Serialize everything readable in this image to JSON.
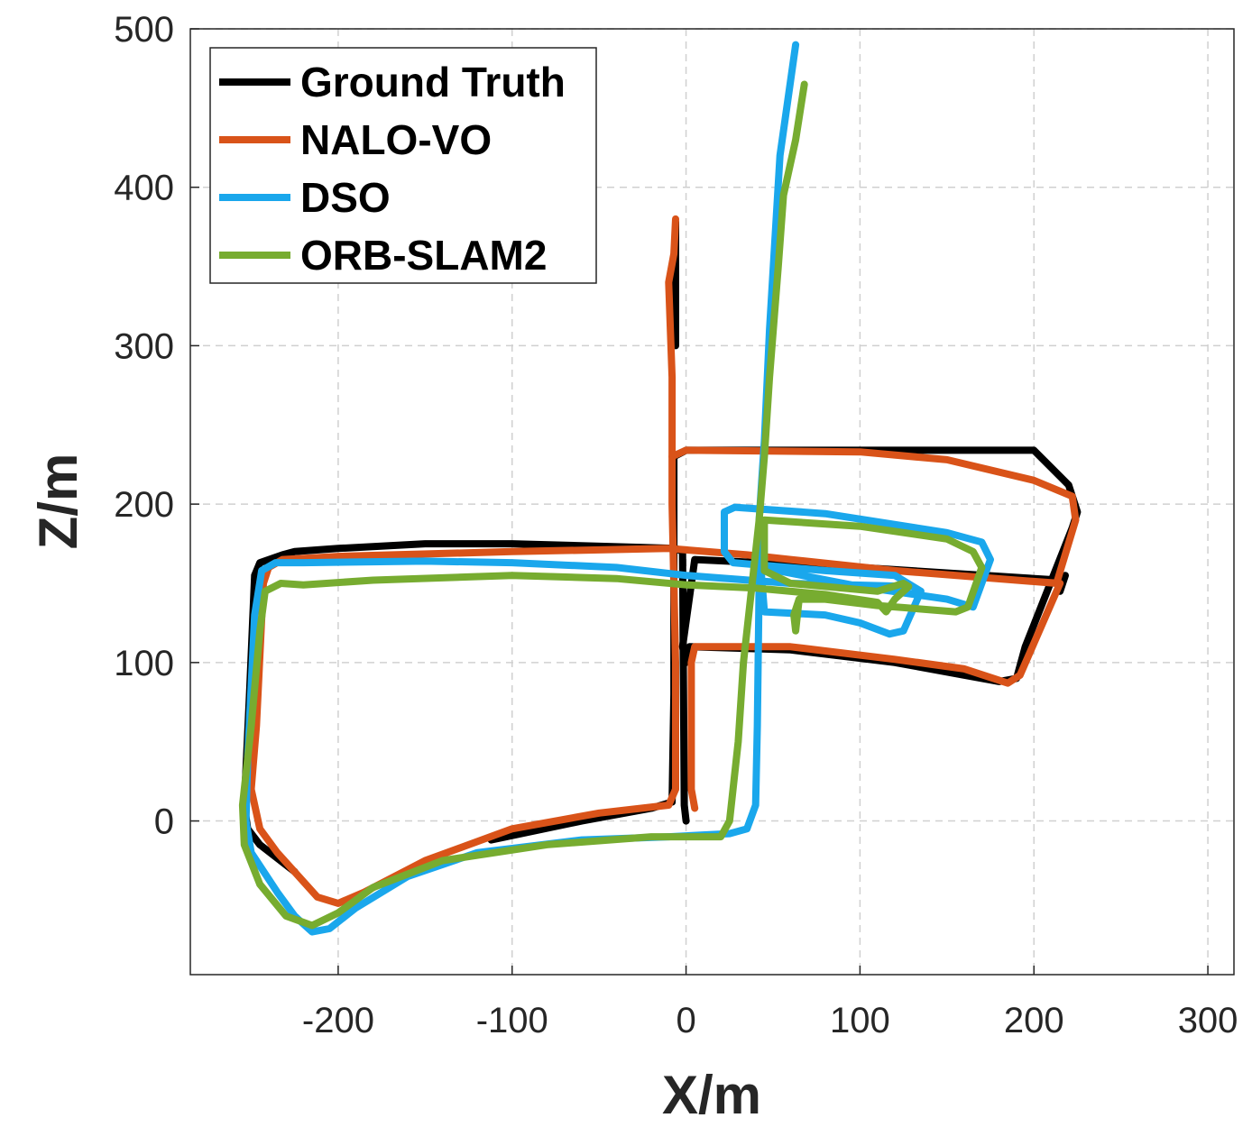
{
  "chart_data": {
    "type": "line",
    "title": "",
    "xlabel": "X/m",
    "ylabel": "Z/m",
    "xlim": [
      -285,
      315
    ],
    "ylim": [
      -97,
      500
    ],
    "xticks": [
      -200,
      -100,
      0,
      100,
      200,
      300
    ],
    "yticks": [
      0,
      100,
      200,
      300,
      400,
      500
    ],
    "grid": true,
    "legend_position": "top-left",
    "series": [
      {
        "name": "Ground Truth",
        "color": "#000000",
        "points": [
          [
            0,
            0
          ],
          [
            -1,
            10
          ],
          [
            -2,
            170
          ],
          [
            -6,
            172
          ],
          [
            -100,
            175
          ],
          [
            -150,
            175
          ],
          [
            -200,
            172
          ],
          [
            -225,
            170
          ],
          [
            -232,
            168
          ],
          [
            -245,
            163
          ],
          [
            -248,
            155
          ],
          [
            -251,
            80
          ],
          [
            -254,
            10
          ],
          [
            -252,
            -5
          ],
          [
            -245,
            -15
          ],
          [
            -225,
            -32
          ]
        ]
      },
      {
        "name": "Ground Truth",
        "color": "#000000",
        "points": [
          [
            -112,
            -12
          ],
          [
            -60,
            0
          ],
          [
            -20,
            8
          ],
          [
            -8,
            12
          ],
          [
            -7,
            80
          ],
          [
            -7,
            230
          ],
          [
            0,
            234
          ],
          [
            200,
            234
          ],
          [
            220,
            212
          ],
          [
            225,
            195
          ],
          [
            222,
            185
          ],
          [
            195,
            110
          ],
          [
            190,
            90
          ],
          [
            180,
            88
          ],
          [
            120,
            100
          ],
          [
            60,
            108
          ],
          [
            2,
            110
          ],
          [
            0,
            100
          ],
          [
            -2,
            110
          ],
          [
            5,
            165
          ],
          [
            100,
            160
          ],
          [
            215,
            152
          ],
          [
            218,
            155
          ],
          [
            215,
            145
          ]
        ]
      },
      {
        "name": "Ground Truth",
        "color": "#000000",
        "points": [
          [
            -6,
            300
          ],
          [
            -6,
            340
          ],
          [
            -6,
            378
          ]
        ]
      },
      {
        "name": "NALO-VO",
        "color": "#D95319",
        "points": [
          [
            5,
            8
          ],
          [
            3,
            20
          ],
          [
            3,
            65
          ],
          [
            3,
            100
          ],
          [
            5,
            110
          ],
          [
            60,
            110
          ],
          [
            120,
            102
          ],
          [
            160,
            96
          ],
          [
            185,
            87
          ],
          [
            192,
            92
          ],
          [
            215,
            150
          ],
          [
            190,
            152
          ],
          [
            120,
            158
          ],
          [
            60,
            165
          ],
          [
            35,
            168
          ],
          [
            -10,
            172
          ],
          [
            -100,
            170
          ],
          [
            -200,
            167
          ],
          [
            -232,
            165
          ],
          [
            -240,
            160
          ],
          [
            -243,
            150
          ],
          [
            -247,
            60
          ],
          [
            -250,
            20
          ],
          [
            -245,
            -5
          ],
          [
            -235,
            -20
          ],
          [
            -212,
            -48
          ],
          [
            -200,
            -52
          ],
          [
            -185,
            -45
          ],
          [
            -150,
            -25
          ],
          [
            -100,
            -5
          ],
          [
            -50,
            5
          ],
          [
            -10,
            10
          ],
          [
            -6,
            20
          ],
          [
            -6,
            100
          ],
          [
            -8,
            200
          ],
          [
            -8,
            230
          ],
          [
            0,
            234
          ],
          [
            100,
            233
          ],
          [
            150,
            228
          ],
          [
            200,
            215
          ],
          [
            222,
            205
          ],
          [
            224,
            190
          ],
          [
            213,
            150
          ],
          [
            190,
            152
          ],
          [
            120,
            158
          ],
          [
            60,
            165
          ]
        ]
      },
      {
        "name": "NALO-VO",
        "color": "#D95319",
        "points": [
          [
            -8,
            230
          ],
          [
            -8,
            280
          ],
          [
            -10,
            340
          ],
          [
            -7,
            358
          ],
          [
            -6,
            380
          ]
        ]
      },
      {
        "name": "DSO",
        "color": "#1AA7EC",
        "points": [
          [
            63,
            490
          ],
          [
            54,
            420
          ],
          [
            48,
            310
          ],
          [
            45,
            240
          ],
          [
            42,
            190
          ],
          [
            42,
            150
          ],
          [
            41,
            60
          ],
          [
            40,
            10
          ],
          [
            35,
            -5
          ],
          [
            25,
            -8
          ],
          [
            -10,
            -10
          ],
          [
            -60,
            -12
          ],
          [
            -120,
            -20
          ],
          [
            -160,
            -35
          ],
          [
            -190,
            -55
          ],
          [
            -205,
            -68
          ],
          [
            -215,
            -70
          ],
          [
            -225,
            -60
          ],
          [
            -235,
            -45
          ],
          [
            -250,
            -20
          ],
          [
            -253,
            0
          ],
          [
            -252,
            40
          ],
          [
            -248,
            130
          ],
          [
            -244,
            158
          ],
          [
            -236,
            163
          ],
          [
            -220,
            163
          ],
          [
            -150,
            164
          ],
          [
            -100,
            163
          ],
          [
            -40,
            160
          ],
          [
            0,
            155
          ],
          [
            60,
            150
          ],
          [
            130,
            148
          ],
          [
            135,
            145
          ],
          [
            125,
            120
          ],
          [
            117,
            118
          ],
          [
            100,
            125
          ],
          [
            80,
            130
          ],
          [
            45,
            132
          ],
          [
            43,
            160
          ],
          [
            100,
            148
          ],
          [
            150,
            140
          ],
          [
            165,
            135
          ],
          [
            175,
            165
          ],
          [
            170,
            176
          ],
          [
            150,
            182
          ],
          [
            80,
            194
          ],
          [
            28,
            198
          ],
          [
            22,
            195
          ],
          [
            22,
            170
          ],
          [
            27,
            163
          ],
          [
            80,
            158
          ],
          [
            120,
            155
          ],
          [
            135,
            145
          ]
        ]
      },
      {
        "name": "ORB-SLAM2",
        "color": "#77AC30",
        "points": [
          [
            68,
            465
          ],
          [
            63,
            430
          ],
          [
            56,
            395
          ],
          [
            53,
            350
          ],
          [
            48,
            280
          ],
          [
            45,
            230
          ],
          [
            42,
            190
          ],
          [
            38,
            150
          ],
          [
            33,
            100
          ],
          [
            30,
            50
          ],
          [
            25,
            0
          ],
          [
            20,
            -10
          ],
          [
            10,
            -10
          ],
          [
            -20,
            -10
          ],
          [
            -80,
            -15
          ],
          [
            -140,
            -25
          ],
          [
            -180,
            -42
          ],
          [
            -200,
            -58
          ],
          [
            -215,
            -66
          ],
          [
            -230,
            -60
          ],
          [
            -245,
            -40
          ],
          [
            -254,
            -15
          ],
          [
            -255,
            10
          ],
          [
            -250,
            60
          ],
          [
            -245,
            120
          ],
          [
            -242,
            145
          ],
          [
            -233,
            150
          ],
          [
            -220,
            149
          ],
          [
            -180,
            152
          ],
          [
            -100,
            155
          ],
          [
            -40,
            153
          ],
          [
            0,
            149
          ],
          [
            40,
            147
          ],
          [
            80,
            143
          ],
          [
            110,
            138
          ],
          [
            115,
            132
          ],
          [
            120,
            140
          ],
          [
            128,
            148
          ],
          [
            125,
            150
          ],
          [
            110,
            145
          ],
          [
            60,
            150
          ],
          [
            45,
            158
          ],
          [
            45,
            190
          ],
          [
            100,
            186
          ],
          [
            150,
            178
          ],
          [
            165,
            170
          ],
          [
            170,
            160
          ],
          [
            162,
            135
          ],
          [
            155,
            132
          ],
          [
            110,
            136
          ],
          [
            80,
            140
          ],
          [
            65,
            140
          ],
          [
            63,
            120
          ],
          [
            62,
            130
          ],
          [
            65,
            140
          ]
        ]
      }
    ],
    "legend": [
      "Ground Truth",
      "NALO-VO",
      "DSO",
      "ORB-SLAM2"
    ],
    "legend_colors": [
      "#000000",
      "#D95319",
      "#1AA7EC",
      "#77AC30"
    ]
  }
}
